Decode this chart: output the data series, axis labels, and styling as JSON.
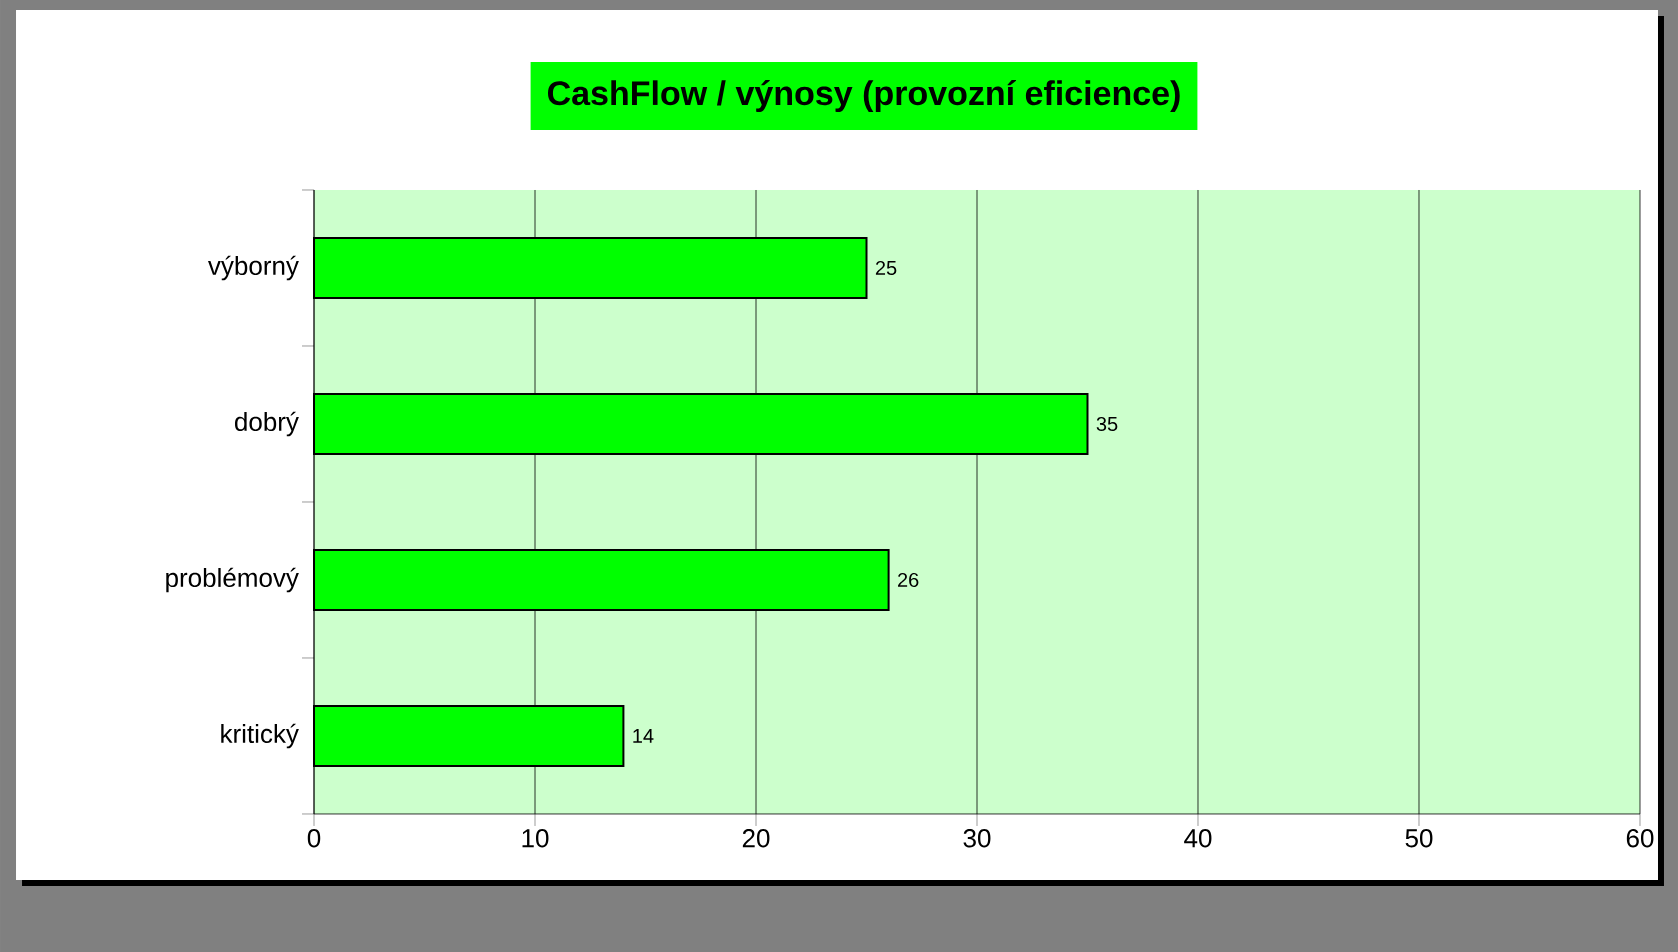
{
  "chart_data": {
    "type": "bar",
    "orientation": "horizontal",
    "title": "CashFlow / výnosy (provozní eficience)",
    "categories": [
      "výborný",
      "dobrý",
      "problémový",
      "kritický"
    ],
    "values": [
      25,
      35,
      26,
      14
    ],
    "color": "#00ff00",
    "xlim": [
      0,
      60
    ],
    "xticks": [
      0,
      10,
      20,
      30,
      40,
      50,
      60
    ],
    "grid": "x",
    "data_labels": true
  }
}
